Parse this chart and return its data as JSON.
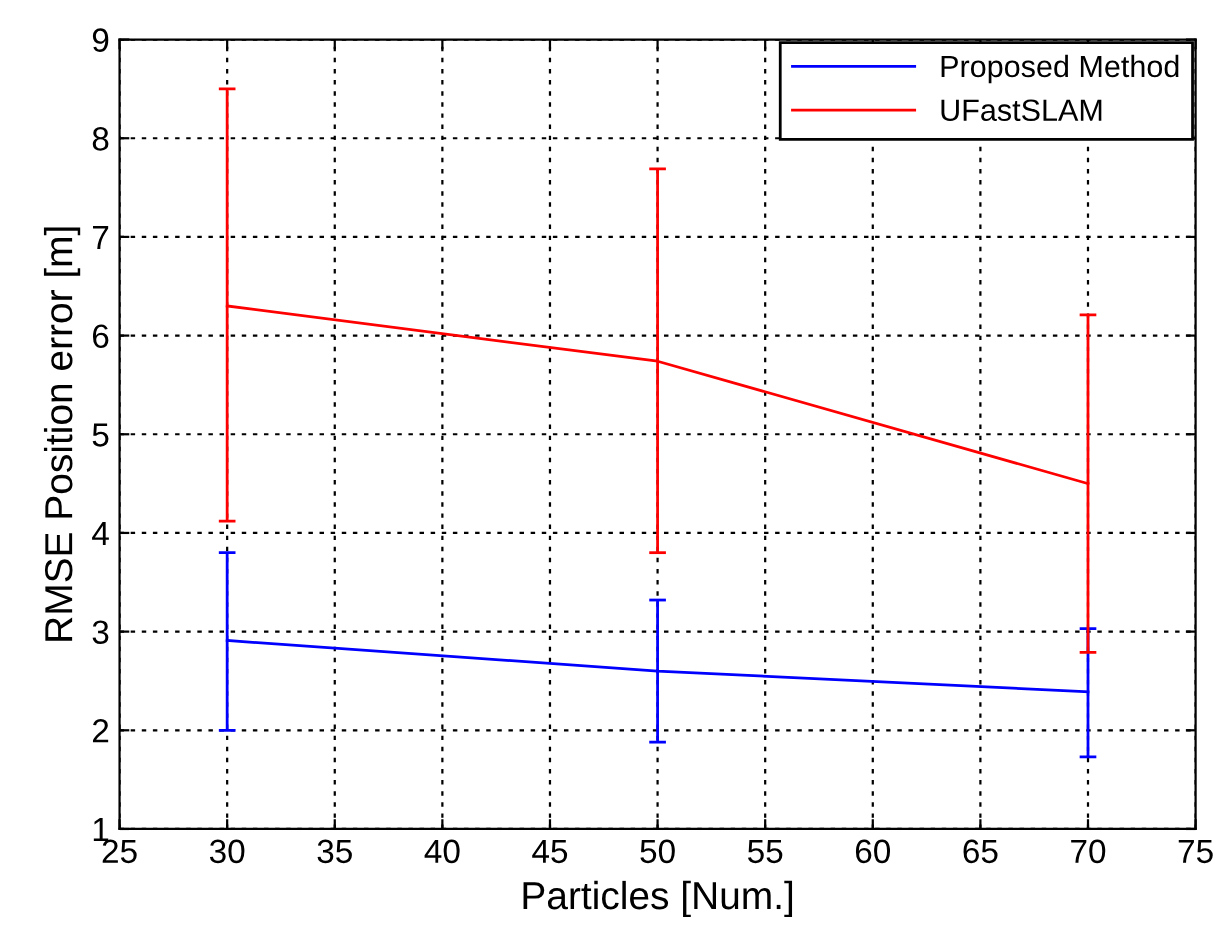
{
  "chart_data": {
    "type": "line",
    "xlabel": "Particles [Num.]",
    "ylabel": "RMSE Position error [m]",
    "x": [
      30,
      50,
      70
    ],
    "series": [
      {
        "name": "Proposed Method",
        "color": "#0000ff",
        "values": [
          2.91,
          2.6,
          2.39
        ],
        "errors": [
          [
            2.0,
            3.8
          ],
          [
            1.88,
            3.32
          ],
          [
            1.73,
            3.03
          ]
        ]
      },
      {
        "name": "UFastSLAM",
        "color": "#ff0000",
        "values": [
          6.3,
          5.74,
          4.5
        ],
        "errors": [
          [
            4.12,
            8.5
          ],
          [
            3.8,
            7.69
          ],
          [
            2.79,
            6.21
          ]
        ]
      }
    ],
    "xlim": [
      25,
      75
    ],
    "xticks": [
      25,
      30,
      35,
      40,
      45,
      50,
      55,
      60,
      65,
      70,
      75
    ],
    "ylim": [
      1,
      9
    ],
    "yticks": [
      1,
      2,
      3,
      4,
      5,
      6,
      7,
      8,
      9
    ],
    "grid": true,
    "legend": "top right",
    "marker": "none",
    "line_style": "solid"
  }
}
